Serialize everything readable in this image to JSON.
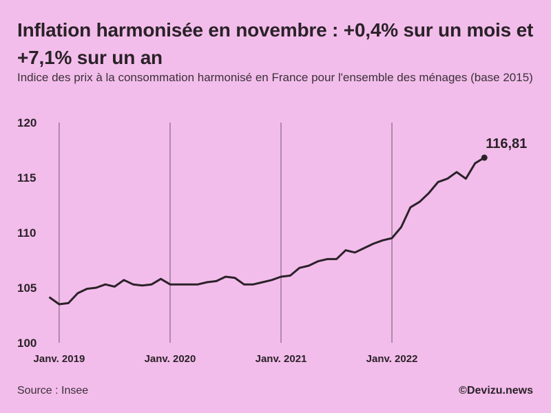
{
  "header": {
    "title": "Inflation harmonisée en novembre : +0,4% sur un mois et +7,1% sur un an",
    "subtitle": "Indice des prix à la consommation harmonisé en France pour l'ensemble des ménages (base 2015)"
  },
  "footer": {
    "source": "Source : Insee",
    "credit": "©Devizu.news"
  },
  "colors": {
    "background": "#f3bdeb",
    "line": "#2a2228",
    "gridline": "#6b5868"
  },
  "chart_data": {
    "type": "line",
    "title": "",
    "xlabel": "",
    "ylabel": "",
    "ylim": [
      100,
      120
    ],
    "yticks": [
      100,
      105,
      110,
      115,
      120
    ],
    "xticks": [
      {
        "index": 1,
        "label": "Janv. 2019"
      },
      {
        "index": 13,
        "label": "Janv. 2020"
      },
      {
        "index": 25,
        "label": "Janv. 2021"
      },
      {
        "index": 37,
        "label": "Janv. 2022"
      }
    ],
    "x_start": "2018-12",
    "x_end": "2022-11",
    "grid": "vertical lines at January of each year",
    "end_label": "116,81",
    "series": [
      {
        "values": [
          104.1,
          103.5,
          103.6,
          104.5,
          104.9,
          105.0,
          105.3,
          105.1,
          105.7,
          105.3,
          105.2,
          105.3,
          105.8,
          105.3,
          105.3,
          105.3,
          105.3,
          105.5,
          105.6,
          106.0,
          105.9,
          105.3,
          105.3,
          105.5,
          105.7,
          106.0,
          106.1,
          106.8,
          107.0,
          107.4,
          107.6,
          107.6,
          108.4,
          108.2,
          108.6,
          109.0,
          109.3,
          109.5,
          110.5,
          112.3,
          112.8,
          113.6,
          114.6,
          114.9,
          115.5,
          114.9,
          116.3,
          116.81
        ]
      }
    ]
  }
}
